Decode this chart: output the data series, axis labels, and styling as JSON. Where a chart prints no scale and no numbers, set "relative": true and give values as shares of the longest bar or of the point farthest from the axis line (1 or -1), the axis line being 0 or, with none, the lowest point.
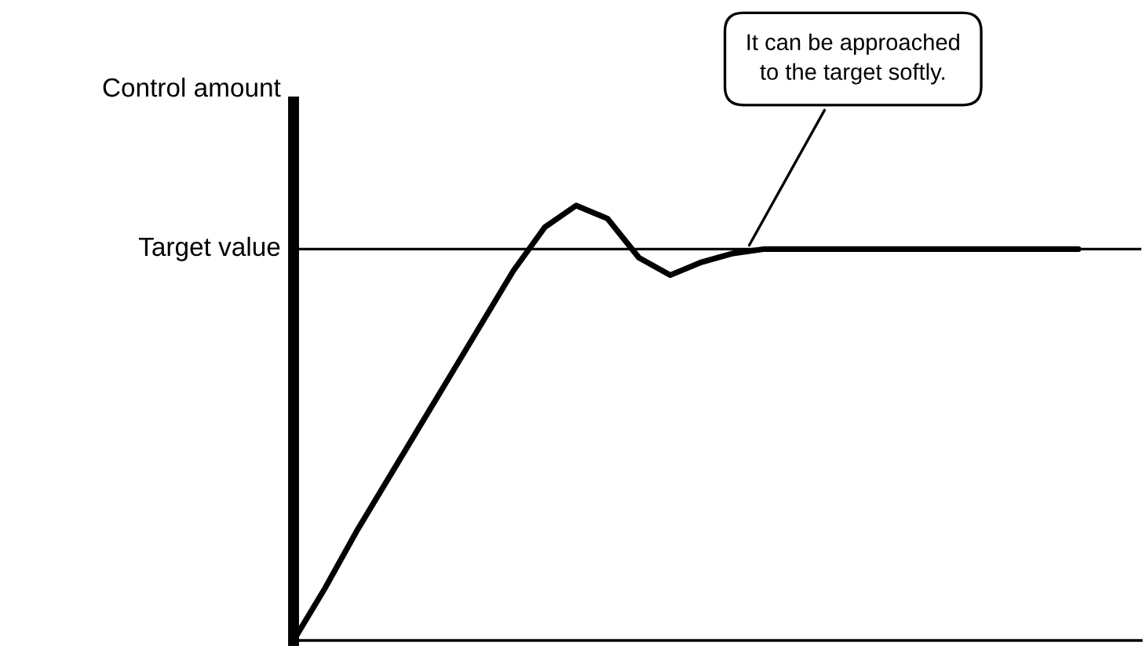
{
  "chart_data": {
    "type": "line",
    "relative": true,
    "ylabel": "Control amount",
    "categories": [
      null,
      null,
      null,
      null,
      null,
      null,
      null,
      null,
      null,
      null,
      null,
      null,
      null,
      null,
      null,
      null,
      null,
      null,
      null,
      null,
      null,
      null,
      null,
      null,
      null,
      null,
      null,
      null
    ],
    "series": [
      {
        "color": "#000000",
        "values": [
          0,
          0.12,
          0.25,
          0.37,
          0.49,
          0.61,
          0.73,
          0.85,
          0.95,
          1.0,
          0.97,
          0.88,
          0.84,
          0.87,
          0.89,
          0.9,
          0.9,
          0.9,
          0.9,
          0.9,
          0.9,
          0.9,
          0.9,
          0.9,
          0.9,
          0.9,
          null,
          null
        ]
      }
    ],
    "ref_lines": [
      {
        "axis": "y",
        "value": 0.9,
        "label": "Target value",
        "color": "#000000"
      }
    ],
    "annotations": [
      "It can be approached\nto the target softly."
    ],
    "legend": false,
    "marker": "none",
    "line_style": "solid"
  }
}
